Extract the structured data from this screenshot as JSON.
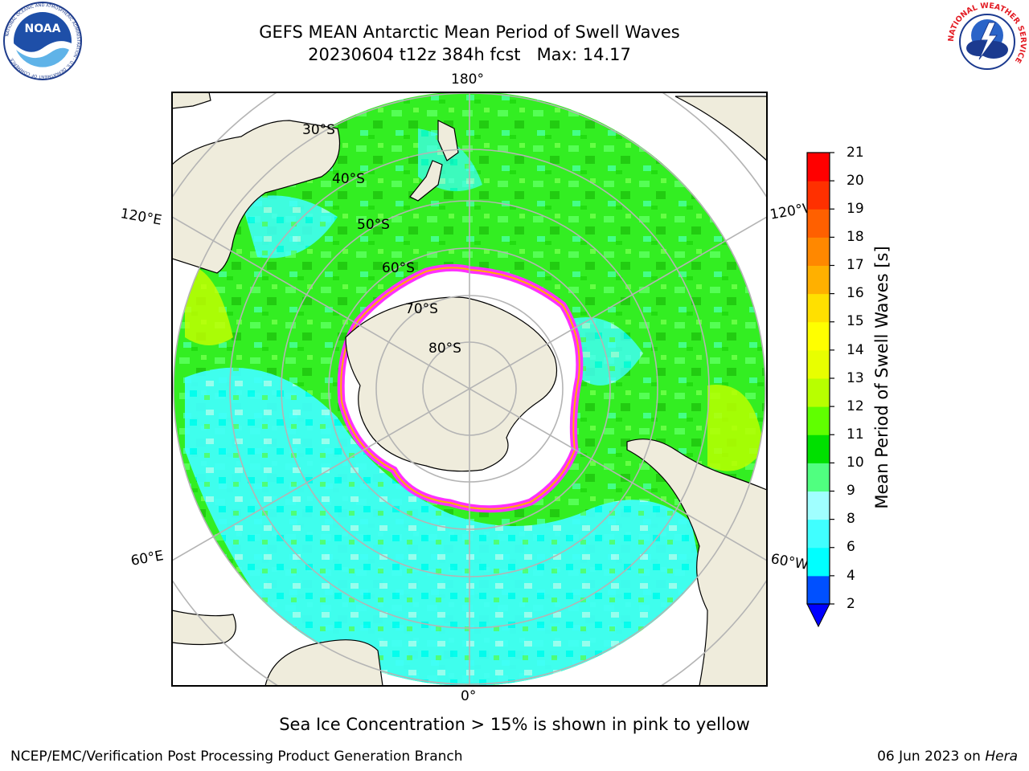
{
  "header": {
    "title_line1": "GEFS MEAN Antarctic Mean Period of Swell Waves",
    "title_line2": "20230604 t12z 384h fcst   Max: 14.17"
  },
  "logos": {
    "noaa_text": "NOAA",
    "noaa_ring_text": "NATIONAL OCEANIC AND ATMOSPHERIC ADMINISTRATION · U.S. DEPARTMENT OF COMMERCE",
    "nws_ring_text": "NATIONAL WEATHER SERVICE"
  },
  "map": {
    "longitude_labels": {
      "top": "180°",
      "bottom": "0°",
      "upper_left": "120°E",
      "lower_left": "60°E",
      "upper_right": "120°W",
      "lower_right": "60°W"
    },
    "latitude_labels": [
      "30°S",
      "40°S",
      "50°S",
      "60°S",
      "70°S",
      "80°S"
    ],
    "colors": {
      "land": "#efecdc",
      "ice_edge": "#ff30ff",
      "ice_inner": "#ffb000",
      "grid": "#b4b4b4"
    }
  },
  "colorbar": {
    "label": "Mean Period of Swell Waves [s]",
    "ticks": [
      "21",
      "20",
      "19",
      "18",
      "17",
      "16",
      "15",
      "14",
      "13",
      "12",
      "11",
      "10",
      "9",
      "8",
      "6",
      "4",
      "2"
    ],
    "levels": [
      2,
      4,
      6,
      8,
      9,
      10,
      11,
      12,
      13,
      14,
      15,
      16,
      17,
      18,
      19,
      20,
      21
    ],
    "colors": [
      "#0050ff",
      "#00ffff",
      "#40ffff",
      "#a0ffff",
      "#50ff80",
      "#00e000",
      "#60ff00",
      "#b8ff00",
      "#e8ff00",
      "#ffff00",
      "#ffe000",
      "#ffb000",
      "#ff8800",
      "#ff6000",
      "#ff3000",
      "#ff0000"
    ],
    "under_color": "#0000ff"
  },
  "note": "Sea Ice Concentration > 15% is shown in pink to yellow",
  "footer": {
    "left": "NCEP/EMC/Verification Post Processing Product Generation Branch",
    "date": "06 Jun 2023 on ",
    "host": "Hera"
  }
}
